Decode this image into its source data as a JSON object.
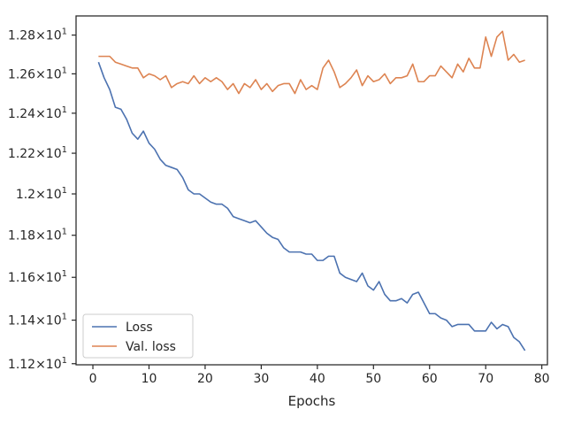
{
  "chart_data": {
    "type": "line",
    "title": "",
    "xlabel": "Epochs",
    "ylabel": "",
    "xlim": [
      -3,
      81
    ],
    "ylim": [
      11.195,
      12.9
    ],
    "y_scale": "log",
    "grid": false,
    "legend_position": "lower-left",
    "x_ticks": [
      0,
      10,
      20,
      30,
      40,
      50,
      60,
      70,
      80
    ],
    "x_tick_labels": [
      "0",
      "10",
      "20",
      "30",
      "40",
      "50",
      "60",
      "70",
      "80"
    ],
    "y_ticks": [
      {
        "value": 11.2,
        "mantissa": "1.12"
      },
      {
        "value": 11.4,
        "mantissa": "1.14"
      },
      {
        "value": 11.6,
        "mantissa": "1.16"
      },
      {
        "value": 11.8,
        "mantissa": "1.18"
      },
      {
        "value": 12.0,
        "mantissa": "1.2"
      },
      {
        "value": 12.2,
        "mantissa": "1.22"
      },
      {
        "value": 12.4,
        "mantissa": "1.24"
      },
      {
        "value": 12.6,
        "mantissa": "1.26"
      },
      {
        "value": 12.8,
        "mantissa": "1.28"
      }
    ],
    "y_tick_base": "10",
    "y_tick_exponent": "1",
    "series": [
      {
        "name": "Loss",
        "color": "#4c72b0",
        "x": [
          1,
          2,
          3,
          4,
          5,
          6,
          7,
          8,
          9,
          10,
          11,
          12,
          13,
          14,
          15,
          16,
          17,
          18,
          19,
          20,
          21,
          22,
          23,
          24,
          25,
          26,
          27,
          28,
          29,
          30,
          31,
          32,
          33,
          34,
          35,
          36,
          37,
          38,
          39,
          40,
          41,
          42,
          43,
          44,
          45,
          46,
          47,
          48,
          49,
          50,
          51,
          52,
          53,
          54,
          55,
          56,
          57,
          58,
          59,
          60,
          61,
          62,
          63,
          64,
          65,
          66,
          67,
          68,
          69,
          70,
          71,
          72,
          73,
          74,
          75,
          76,
          77
        ],
        "y": [
          12.66,
          12.58,
          12.52,
          12.43,
          12.42,
          12.37,
          12.3,
          12.27,
          12.31,
          12.25,
          12.22,
          12.17,
          12.14,
          12.13,
          12.12,
          12.08,
          12.02,
          12.0,
          12.0,
          11.98,
          11.96,
          11.95,
          11.95,
          11.93,
          11.89,
          11.88,
          11.87,
          11.86,
          11.87,
          11.84,
          11.81,
          11.79,
          11.78,
          11.74,
          11.72,
          11.72,
          11.72,
          11.71,
          11.71,
          11.68,
          11.68,
          11.7,
          11.7,
          11.62,
          11.6,
          11.59,
          11.58,
          11.62,
          11.56,
          11.54,
          11.58,
          11.52,
          11.49,
          11.49,
          11.5,
          11.48,
          11.52,
          11.53,
          11.48,
          11.43,
          11.43,
          11.41,
          11.4,
          11.37,
          11.38,
          11.38,
          11.38,
          11.35,
          11.35,
          11.35,
          11.39,
          11.36,
          11.38,
          11.37,
          11.32,
          11.3,
          11.26
        ]
      },
      {
        "name": "Val. loss",
        "color": "#dd8452",
        "x": [
          1,
          2,
          3,
          4,
          5,
          6,
          7,
          8,
          9,
          10,
          11,
          12,
          13,
          14,
          15,
          16,
          17,
          18,
          19,
          20,
          21,
          22,
          23,
          24,
          25,
          26,
          27,
          28,
          29,
          30,
          31,
          32,
          33,
          34,
          35,
          36,
          37,
          38,
          39,
          40,
          41,
          42,
          43,
          44,
          45,
          46,
          47,
          48,
          49,
          50,
          51,
          52,
          53,
          54,
          55,
          56,
          57,
          58,
          59,
          60,
          61,
          62,
          63,
          64,
          65,
          66,
          67,
          68,
          69,
          70,
          71,
          72,
          73,
          74,
          75,
          76,
          77
        ],
        "y": [
          12.69,
          12.69,
          12.69,
          12.66,
          12.65,
          12.64,
          12.63,
          12.63,
          12.58,
          12.6,
          12.59,
          12.57,
          12.59,
          12.53,
          12.55,
          12.56,
          12.55,
          12.59,
          12.55,
          12.58,
          12.56,
          12.58,
          12.56,
          12.52,
          12.55,
          12.5,
          12.55,
          12.53,
          12.57,
          12.52,
          12.55,
          12.51,
          12.54,
          12.55,
          12.55,
          12.5,
          12.57,
          12.52,
          12.54,
          12.52,
          12.63,
          12.67,
          12.61,
          12.53,
          12.55,
          12.58,
          12.62,
          12.54,
          12.59,
          12.56,
          12.57,
          12.6,
          12.55,
          12.58,
          12.58,
          12.59,
          12.65,
          12.56,
          12.56,
          12.59,
          12.59,
          12.64,
          12.61,
          12.58,
          12.65,
          12.61,
          12.68,
          12.63,
          12.63,
          12.79,
          12.69,
          12.79,
          12.82,
          12.67,
          12.7,
          12.66,
          12.67
        ]
      }
    ]
  }
}
